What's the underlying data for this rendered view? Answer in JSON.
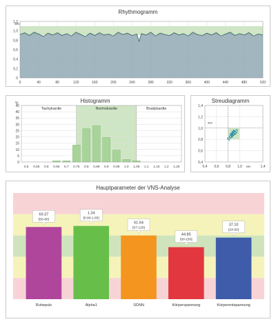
{
  "rhythmogram": {
    "title": "Rhythmogramm",
    "chart_data": {
      "type": "area",
      "title": "Rhythmogramm",
      "ylabel": "sec",
      "xlim": [
        0,
        520
      ],
      "ylim": [
        0,
        1.2
      ],
      "x_ticks": [
        "0",
        "40",
        "80",
        "120",
        "160",
        "200",
        "240",
        "280",
        "320",
        "360",
        "400",
        "440",
        "480",
        "520"
      ],
      "y_ticks": [
        "0",
        "0,2",
        "0,4",
        "0,6",
        "0,8",
        "1,0",
        "1,2"
      ],
      "normal_band": [
        0.91,
        1.1
      ],
      "series": [
        {
          "x": [
            0,
            10,
            20,
            30,
            40,
            50,
            60,
            70,
            80,
            90,
            100,
            110,
            120,
            130,
            140,
            150,
            160,
            170,
            180,
            190,
            200,
            210,
            220,
            230,
            240,
            250,
            255,
            260,
            270,
            280,
            290,
            300,
            310,
            320,
            330,
            340,
            350,
            360,
            370,
            380,
            390,
            400,
            410,
            420,
            430,
            440,
            450,
            460,
            470,
            480,
            490,
            500,
            510,
            520
          ],
          "values": [
            0.92,
            0.96,
            0.9,
            0.97,
            0.93,
            0.88,
            0.95,
            0.91,
            0.96,
            0.9,
            0.94,
            0.89,
            0.97,
            0.92,
            0.88,
            0.95,
            0.9,
            0.96,
            0.91,
            0.93,
            0.89,
            0.97,
            0.92,
            0.95,
            0.9,
            0.93,
            0.78,
            0.94,
            0.91,
            0.97,
            0.89,
            0.95,
            0.92,
            0.9,
            0.96,
            0.91,
            0.94,
            0.89,
            0.97,
            0.92,
            0.9,
            0.95,
            0.91,
            0.96,
            0.89,
            0.93,
            0.97,
            0.9,
            0.94,
            0.91,
            0.96,
            0.89,
            0.93,
            0.91
          ]
        }
      ],
      "grid": true
    }
  },
  "histogram": {
    "title": "Histogramm",
    "chart_data": {
      "type": "bar",
      "title": "Histogramm",
      "ylabel": "%",
      "ylim": [
        0,
        45
      ],
      "y_ticks": [
        "0",
        "5",
        "10",
        "15",
        "20",
        "25",
        "30",
        "35",
        "40",
        "45"
      ],
      "categories": [
        "0,5",
        "0,55",
        "0,6",
        "0,65",
        "0,7",
        "0,75",
        "0,8",
        "0,85",
        "0,9",
        "0,95",
        "1,0",
        "1,05",
        "1,1",
        "1,15",
        "1,2",
        "1,25"
      ],
      "values": [
        0,
        0,
        0,
        1,
        1,
        13.5,
        26.5,
        29,
        19.5,
        9.5,
        2,
        1,
        0,
        0,
        0,
        0
      ],
      "zones": [
        {
          "label": "Tachykardie",
          "from": "0,5",
          "to": "0,75"
        },
        {
          "label": "Normokardie",
          "from": "0,75",
          "to": "1,05"
        },
        {
          "label": "Bradykardie",
          "from": "1,05",
          "to": "1,25"
        }
      ]
    }
  },
  "scatter": {
    "title": "Streudiagramm",
    "chart_data": {
      "type": "scatter",
      "title": "Streudiagramm",
      "ylabel": "sec",
      "xlabel": "sec",
      "xlim": [
        0.4,
        1.4
      ],
      "ylim": [
        0.4,
        1.4
      ],
      "x_ticks": [
        "0,4",
        "0,6",
        "0,8",
        "1,0",
        "1,4"
      ],
      "y_ticks": [
        "0,4",
        "0,6",
        "0,8",
        "1,0",
        "1,2",
        "1,4"
      ],
      "normal_box": [
        0.8,
        1.0,
        0.8,
        1.0
      ],
      "points": [
        [
          0.82,
          0.84
        ],
        [
          0.85,
          0.88
        ],
        [
          0.88,
          0.9
        ],
        [
          0.9,
          0.93
        ],
        [
          0.86,
          0.85
        ],
        [
          0.84,
          0.87
        ],
        [
          0.89,
          0.92
        ],
        [
          0.92,
          0.95
        ],
        [
          0.87,
          0.89
        ],
        [
          0.83,
          0.82
        ],
        [
          0.91,
          0.9
        ],
        [
          0.94,
          0.97
        ],
        [
          0.86,
          0.91
        ],
        [
          0.88,
          0.86
        ],
        [
          0.9,
          0.88
        ],
        [
          0.93,
          0.93
        ],
        [
          0.85,
          0.83
        ],
        [
          0.8,
          0.8
        ],
        [
          0.87,
          0.94
        ],
        [
          0.95,
          0.92
        ],
        [
          0.89,
          0.87
        ],
        [
          0.84,
          0.9
        ],
        [
          0.92,
          0.89
        ],
        [
          0.86,
          0.88
        ],
        [
          0.9,
          0.96
        ],
        [
          0.83,
          0.86
        ],
        [
          0.88,
          0.93
        ],
        [
          0.96,
          0.96
        ],
        [
          0.87,
          0.84
        ],
        [
          0.91,
          0.94
        ],
        [
          0.79,
          0.82
        ],
        [
          0.85,
          0.9
        ],
        [
          0.93,
          0.9
        ],
        [
          0.88,
          0.88
        ],
        [
          0.9,
          0.91
        ],
        [
          0.86,
          0.86
        ],
        [
          0.82,
          0.79
        ],
        [
          0.89,
          0.95
        ],
        [
          0.94,
          0.93
        ],
        [
          0.87,
          0.91
        ]
      ]
    }
  },
  "vns": {
    "title": "Hauptparameter der VNS-Analyse",
    "chart_data": {
      "type": "bar",
      "title": "Hauptparameter der VNS-Analyse",
      "categories": [
        "Ruhepuls",
        "Alpha1",
        "SDNN",
        "Körperspannung",
        "Körperentspannung"
      ],
      "values": [
        69.37,
        1.34,
        61.64,
        44.85,
        37.1
      ],
      "normalized": [
        0.68,
        0.69,
        0.6,
        0.49,
        0.58
      ],
      "bar_labels": [
        "69.37",
        "1.34",
        "61.64",
        "44.85",
        "37.10"
      ],
      "bar_ranges": [
        "[50-80]",
        "[0.90-1.65]",
        "[57-125]",
        "[50-150]",
        "[24-92]"
      ],
      "bar_colors": [
        "#b0459c",
        "#67bf4a",
        "#f4951f",
        "#e2373f",
        "#3e5ca9"
      ],
      "bands": [
        "#f8d3d6",
        "#f5f3ba",
        "#cfe4bd",
        "#f5f3ba",
        "#f8d3d6"
      ]
    }
  }
}
